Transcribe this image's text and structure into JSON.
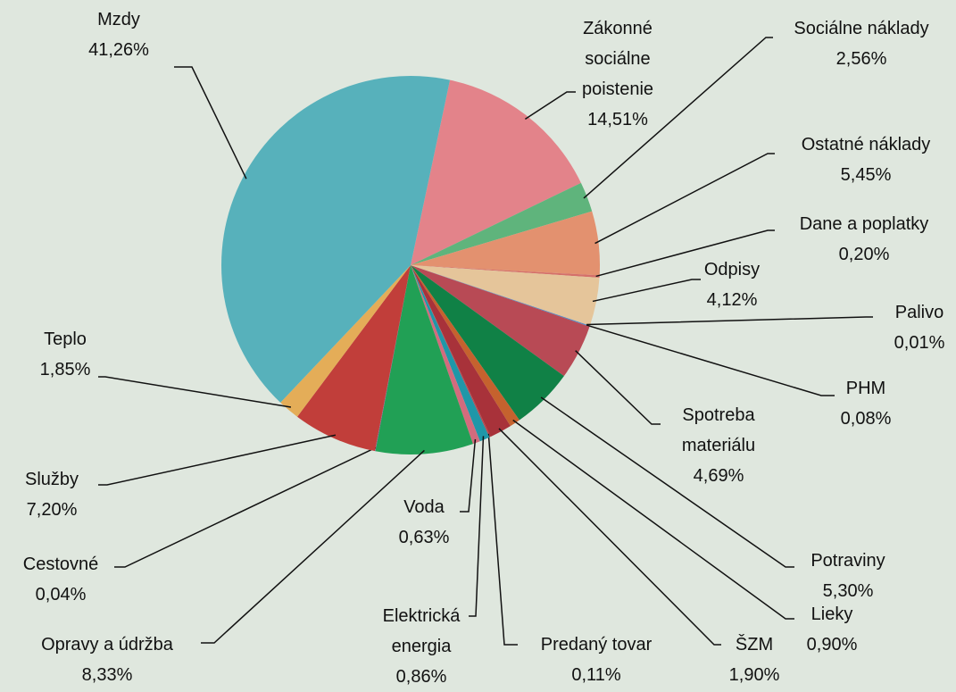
{
  "chart_data": {
    "type": "pie",
    "categories": [
      "Zákonné sociálne poistenie",
      "Sociálne náklady",
      "Ostatné náklady",
      "Dane a poplatky",
      "Odpisy",
      "Palivo",
      "PHM",
      "Spotreba materiálu",
      "Potraviny",
      "Lieky",
      "ŠZM",
      "Predaný tovar",
      "Elektrická energia",
      "Voda",
      "Opravy a údržba",
      "Cestovné",
      "Služby",
      "Teplo",
      "Mzdy"
    ],
    "values": [
      14.51,
      2.56,
      5.45,
      0.2,
      4.12,
      0.01,
      0.08,
      4.69,
      5.3,
      0.9,
      1.9,
      0.11,
      0.86,
      0.63,
      8.33,
      0.04,
      7.2,
      1.85,
      41.26
    ],
    "value_labels": [
      "14,51%",
      "2,56%",
      "5,45%",
      "0,20%",
      "4,12%",
      "0,01%",
      "0,08%",
      "4,69%",
      "5,30%",
      "0,90%",
      "1,90%",
      "0,11%",
      "0,86%",
      "0,63%",
      "8,33%",
      "0,04%",
      "7,20%",
      "1,85%",
      "41,26%"
    ],
    "colors": [
      "#e3838a",
      "#5fb47c",
      "#e3916f",
      "#d5706a",
      "#e5c59a",
      "#3f7fb0",
      "#4f86c6",
      "#b84a55",
      "#108146",
      "#c5622e",
      "#a8323a",
      "#b3484f",
      "#1f97a8",
      "#d36b7d",
      "#21a055",
      "#8a4f9e",
      "#c13e3a",
      "#e4ad58",
      "#57b1bb"
    ]
  }
}
